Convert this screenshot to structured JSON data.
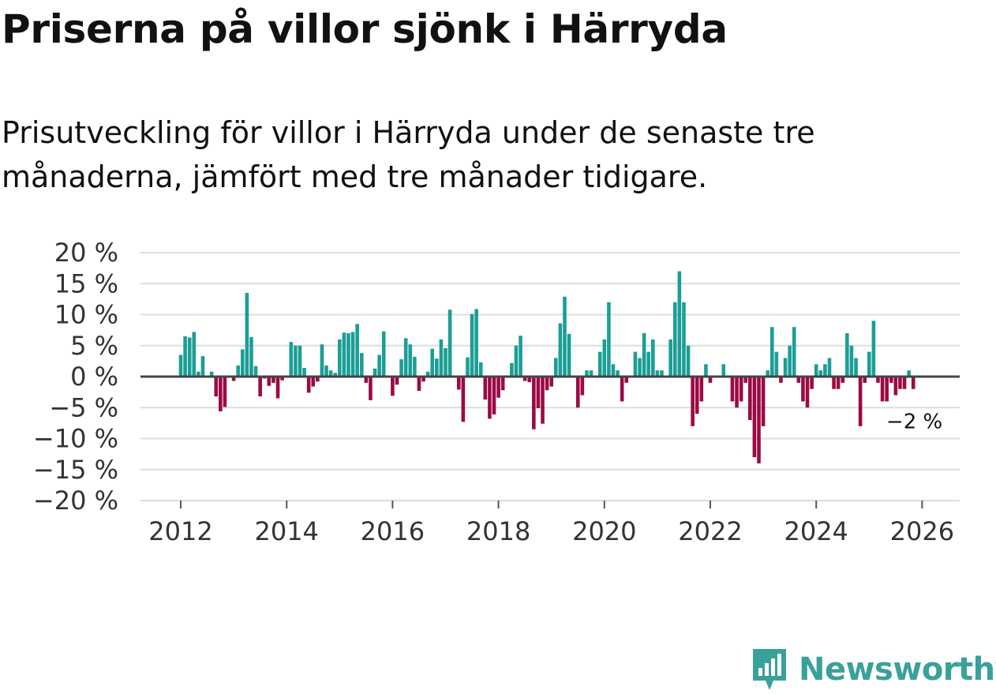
{
  "title": "Priserna på villor sjönk i Härryda",
  "subtitle": "Prisutveckling för villor i Härryda under de senaste tre månaderna, jämfört med tre månader tidigare.",
  "brand": {
    "name": "Newsworthy",
    "icon": "newsworthy-logo-icon"
  },
  "colors": {
    "positive": "#1b9e96",
    "negative": "#9b0a45",
    "grid": "#dddddd",
    "zero_line": "#444444",
    "brand": "#3aa199"
  },
  "chart_data": {
    "type": "bar",
    "title": "Priserna på villor sjönk i Härryda",
    "xlabel": "",
    "ylabel": "",
    "ylim": [
      -20,
      20
    ],
    "y_ticks": [
      20,
      15,
      10,
      5,
      0,
      -5,
      -10,
      -15,
      -20
    ],
    "y_tick_labels": [
      "20 %",
      "15 %",
      "10 %",
      "5 %",
      "0 %",
      "−5 %",
      "−10 %",
      "−15 %",
      "−20 %"
    ],
    "x_ticks": [
      "2012",
      "2014",
      "2016",
      "2018",
      "2020",
      "2022",
      "2024",
      "2026"
    ],
    "x_start": "2012-01",
    "series": [
      {
        "name": "Prisutveckling",
        "values": [
          3.5,
          6.5,
          6.3,
          7.2,
          0.8,
          3.3,
          0,
          0.8,
          -3.2,
          -5.6,
          -4.9,
          0,
          -0.7,
          1.8,
          4.4,
          13.5,
          6.4,
          1.7,
          -3.2,
          -0.3,
          -1.5,
          -1.0,
          -3.5,
          -0.6,
          0,
          5.6,
          5.0,
          5.0,
          1.4,
          -2.6,
          -1.6,
          -0.8,
          5.2,
          1.8,
          1.0,
          0.6,
          6.0,
          7.1,
          7.0,
          7.2,
          8.5,
          3.8,
          -1.0,
          -3.8,
          1.3,
          3.5,
          7.3,
          0,
          -3.1,
          -1.3,
          2.8,
          6.2,
          5.2,
          3.2,
          -2.3,
          -0.8,
          0.8,
          4.5,
          2.9,
          6.0,
          4.6,
          10.8,
          0,
          -2.1,
          -7.3,
          3.1,
          10.1,
          10.9,
          2.3,
          -3.7,
          -6.8,
          -6.1,
          -3.4,
          -2.2,
          0,
          2.2,
          5.0,
          6.6,
          -0.7,
          -0.9,
          -8.5,
          -5.1,
          -7.6,
          -2.2,
          -1.6,
          3.0,
          8.6,
          12.9,
          6.9,
          0,
          -5.0,
          -3.0,
          1.0,
          1.0,
          0,
          4.0,
          6.0,
          12.0,
          2.0,
          1.0,
          -4.0,
          -1.0,
          0,
          4.0,
          3.0,
          7.0,
          4.0,
          6.0,
          1.0,
          1.0,
          0,
          6.0,
          12.0,
          17.0,
          12.0,
          5.0,
          -8.0,
          -6.0,
          -4.0,
          2.0,
          -1.0,
          0,
          0,
          2.0,
          0,
          -4.0,
          -5.0,
          -4.0,
          -1.0,
          -7.0,
          -13.0,
          -14.0,
          -8.0,
          1.0,
          8.0,
          4.0,
          -1.0,
          3.0,
          5.0,
          8.0,
          -1.0,
          -4.0,
          -5.0,
          -2.0,
          2.0,
          1.0,
          2.0,
          3.0,
          -2.0,
          -2.0,
          -1.0,
          7.0,
          5.0,
          3.0,
          -8.0,
          -1.0,
          4.0,
          9.0,
          -1.0,
          -4.0,
          -4.0,
          -1.0,
          -3.0,
          -2.0,
          -2.0,
          1.0,
          -2.0
        ]
      }
    ],
    "last_value_label": "−2 %"
  }
}
